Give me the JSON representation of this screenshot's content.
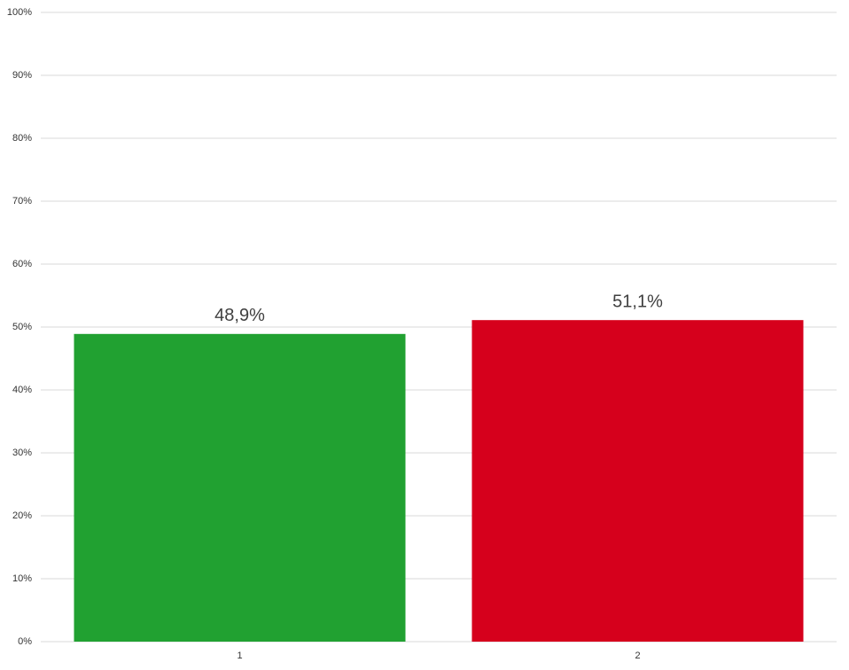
{
  "chart_data": {
    "type": "bar",
    "categories": [
      "1",
      "2"
    ],
    "values": [
      48.9,
      51.1
    ],
    "value_labels": [
      "48,9%",
      "51,1%"
    ],
    "colors": [
      "#21a131",
      "#d6001c"
    ],
    "ylim": [
      0,
      100
    ],
    "yticks": [
      {
        "value": 0,
        "label": "0%"
      },
      {
        "value": 10,
        "label": "10%"
      },
      {
        "value": 20,
        "label": "20%"
      },
      {
        "value": 30,
        "label": "30%"
      },
      {
        "value": 40,
        "label": "40%"
      },
      {
        "value": 50,
        "label": "50%"
      },
      {
        "value": 60,
        "label": "60%"
      },
      {
        "value": 70,
        "label": "70%"
      },
      {
        "value": 80,
        "label": "80%"
      },
      {
        "value": 90,
        "label": "90%"
      },
      {
        "value": 100,
        "label": "100%"
      }
    ],
    "grid": true
  }
}
